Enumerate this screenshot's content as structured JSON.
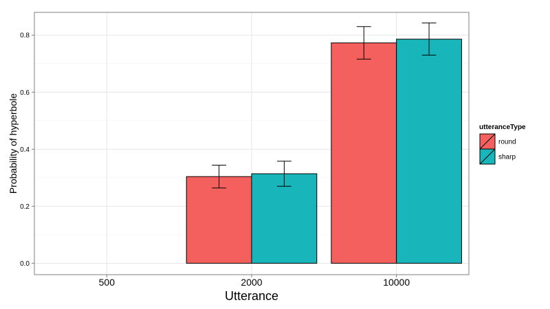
{
  "chart_data": {
    "type": "bar",
    "xlabel": "Utterance",
    "ylabel": "Probability of hyperbole",
    "categories": [
      "500",
      "2000",
      "10000"
    ],
    "ylim": [
      -0.04,
      0.88
    ],
    "yticks": [
      0.0,
      0.2,
      0.4,
      0.6,
      0.8
    ],
    "ytick_labels": [
      "0.0",
      "0.2",
      "0.4",
      "0.6",
      "0.8"
    ],
    "grid": true,
    "legend": {
      "title": "utteranceType",
      "position": "right"
    },
    "series": [
      {
        "name": "round",
        "color": "#F3605E",
        "values": [
          0.0,
          0.304,
          0.773
        ],
        "err_low": [
          0.0,
          0.264,
          0.716
        ],
        "err_high": [
          0.0,
          0.344,
          0.83
        ]
      },
      {
        "name": "sharp",
        "color": "#18B5BA",
        "values": [
          0.0,
          0.314,
          0.786
        ],
        "err_low": [
          0.0,
          0.27,
          0.73
        ],
        "err_high": [
          0.0,
          0.358,
          0.843
        ]
      }
    ]
  }
}
